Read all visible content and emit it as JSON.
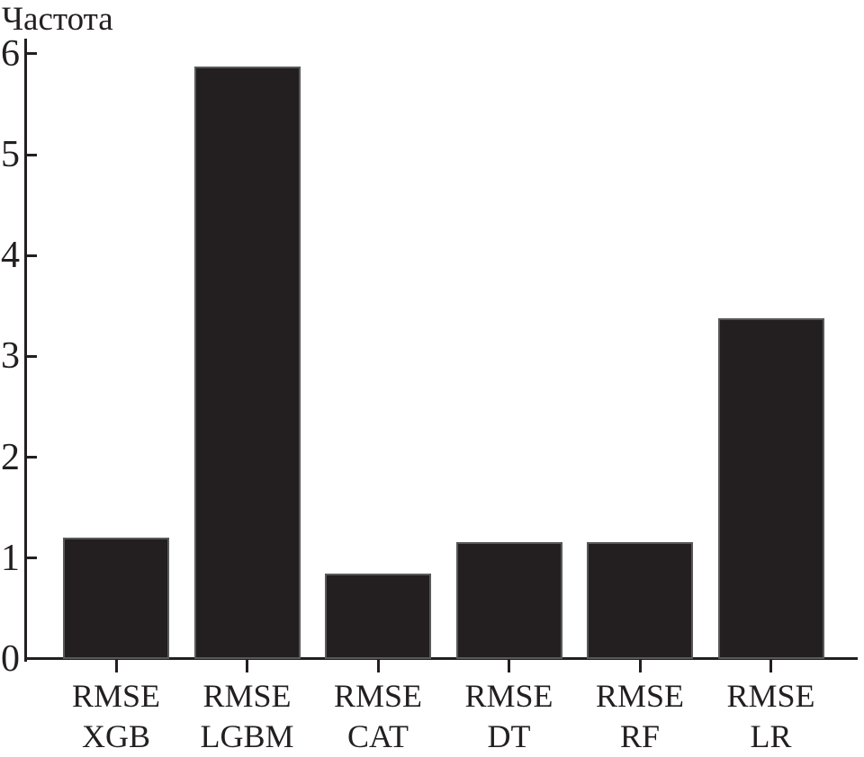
{
  "chart_data": {
    "type": "bar",
    "title": "Частота",
    "categories": [
      "RMSE XGB",
      "RMSE LGBM",
      "RMSE CAT",
      "RMSE DT",
      "RMSE RF",
      "RMSE LR"
    ],
    "values": [
      1.2,
      5.87,
      0.85,
      1.16,
      1.16,
      3.38
    ],
    "xlabel": "",
    "ylabel": "Частота",
    "ylim": [
      0,
      6
    ],
    "yticks": [
      0,
      1,
      2,
      3,
      4,
      5,
      6
    ],
    "bar_color": "#231f20",
    "axis_color": "#231f20",
    "grid": false,
    "legend_position": "none"
  }
}
